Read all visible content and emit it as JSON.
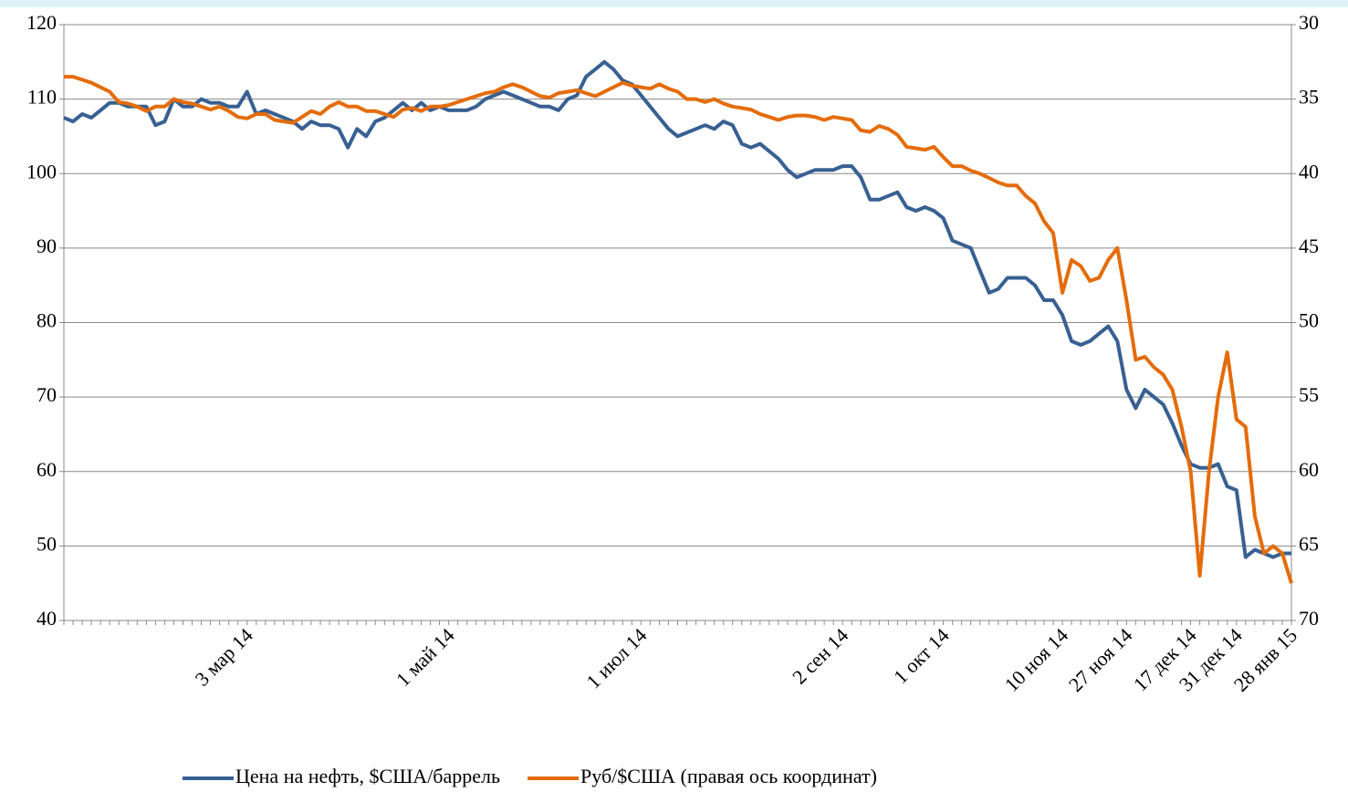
{
  "chart_data": {
    "type": "line",
    "categories": [
      null,
      null,
      null,
      null,
      null,
      null,
      null,
      null,
      null,
      null,
      null,
      null,
      null,
      null,
      null,
      null,
      null,
      null,
      null,
      null,
      "3 мар 14",
      null,
      null,
      null,
      null,
      null,
      null,
      null,
      null,
      null,
      null,
      null,
      null,
      null,
      null,
      null,
      null,
      null,
      null,
      null,
      null,
      null,
      "1 май 14",
      null,
      null,
      null,
      null,
      null,
      null,
      null,
      null,
      null,
      null,
      null,
      null,
      null,
      null,
      null,
      null,
      null,
      null,
      null,
      null,
      "1 июл 14",
      null,
      null,
      null,
      null,
      null,
      null,
      null,
      null,
      null,
      null,
      null,
      null,
      null,
      null,
      null,
      null,
      null,
      null,
      null,
      null,
      null,
      "2 сен 14",
      null,
      null,
      null,
      null,
      null,
      null,
      null,
      null,
      null,
      null,
      "1 окт 14",
      null,
      null,
      null,
      null,
      null,
      null,
      null,
      null,
      null,
      null,
      null,
      null,
      "10 ноя 14",
      null,
      null,
      null,
      null,
      null,
      null,
      "27 ноя 14",
      null,
      null,
      null,
      null,
      null,
      null,
      "17 дек 14",
      null,
      null,
      null,
      null,
      "31 дек 14",
      null,
      null,
      null,
      null,
      null,
      "28 янв 15"
    ],
    "series": [
      {
        "name": "Цена на нефть, $США/баррель",
        "color": "#386092",
        "values": [
          107.5,
          107,
          108,
          107.5,
          108.5,
          109.5,
          109.5,
          109,
          109,
          109,
          106.5,
          107,
          110,
          109,
          109,
          110,
          109.5,
          109.5,
          109,
          109,
          111,
          108,
          108.5,
          108,
          107.5,
          107,
          106,
          107,
          106.5,
          106.5,
          106,
          103.5,
          106,
          105,
          107,
          107.5,
          108.5,
          109.5,
          108.5,
          109.5,
          108.5,
          109,
          108.5,
          108.5,
          108.5,
          109,
          110,
          110.5,
          111,
          110.5,
          110,
          109.5,
          109,
          109,
          108.5,
          110,
          110.5,
          113,
          114,
          115,
          114,
          112.5,
          112,
          110.5,
          109,
          107.5,
          106,
          105,
          105.5,
          106,
          106.5,
          106,
          107,
          106.5,
          104,
          103.5,
          104,
          103,
          102,
          100.5,
          99.5,
          100,
          100.5,
          100.5,
          100.5,
          101,
          101,
          99.5,
          96.5,
          96.5,
          97,
          97.5,
          95.5,
          95,
          95.5,
          95,
          94,
          91,
          90.5,
          90,
          87,
          84,
          84.5,
          86,
          86,
          86,
          85,
          83,
          83,
          81,
          77.5,
          77,
          77.5,
          78.5,
          79.5,
          77.5,
          71,
          68.5,
          71,
          70,
          69,
          66.5,
          63.5,
          61,
          60.5,
          60.5,
          61,
          58,
          57.5,
          48.5,
          49.5,
          49,
          48.5,
          49,
          49
        ]
      },
      {
        "name": "Руб/$США (правая ось координат)",
        "color": "#e46c0a",
        "axis": "y2",
        "values": [
          33.5,
          33.5,
          33.7,
          33.9,
          34.2,
          34.5,
          35.2,
          35.3,
          35.5,
          35.8,
          35.5,
          35.5,
          35,
          35.2,
          35.3,
          35.5,
          35.7,
          35.5,
          35.8,
          36.2,
          36.3,
          36,
          36,
          36.4,
          36.5,
          36.6,
          36.2,
          35.8,
          36,
          35.5,
          35.2,
          35.5,
          35.5,
          35.8,
          35.8,
          36,
          36.2,
          35.7,
          35.6,
          35.8,
          35.5,
          35.5,
          35.4,
          35.2,
          35,
          34.8,
          34.6,
          34.5,
          34.2,
          34,
          34.2,
          34.5,
          34.8,
          34.9,
          34.6,
          34.5,
          34.4,
          34.6,
          34.8,
          34.5,
          34.2,
          33.9,
          34.1,
          34.2,
          34.3,
          34,
          34.3,
          34.5,
          35,
          35,
          35.2,
          35,
          35.3,
          35.5,
          35.6,
          35.7,
          36,
          36.2,
          36.4,
          36.2,
          36.1,
          36.1,
          36.2,
          36.4,
          36.2,
          36.3,
          36.4,
          37.1,
          37.2,
          36.8,
          37,
          37.4,
          38.2,
          38.3,
          38.4,
          38.2,
          38.9,
          39.5,
          39.5,
          39.8,
          40,
          40.3,
          40.6,
          40.8,
          40.8,
          41.5,
          42,
          43.2,
          44,
          48,
          45.8,
          46.2,
          47.2,
          47,
          45.8,
          45,
          48.5,
          52.5,
          52.3,
          53,
          53.5,
          54.5,
          57,
          60,
          67,
          60,
          55,
          52,
          56.5,
          57,
          63,
          65.5,
          65,
          65.5,
          67.5
        ]
      }
    ],
    "ylim": [
      40,
      120
    ],
    "yticks": [
      40,
      50,
      60,
      70,
      80,
      90,
      100,
      110,
      120
    ],
    "y2lim": [
      30,
      70
    ],
    "y2ticks": [
      30,
      35,
      40,
      45,
      50,
      55,
      60,
      65,
      70
    ],
    "y2_inverted": true,
    "grid": true,
    "legend": "bottom"
  }
}
